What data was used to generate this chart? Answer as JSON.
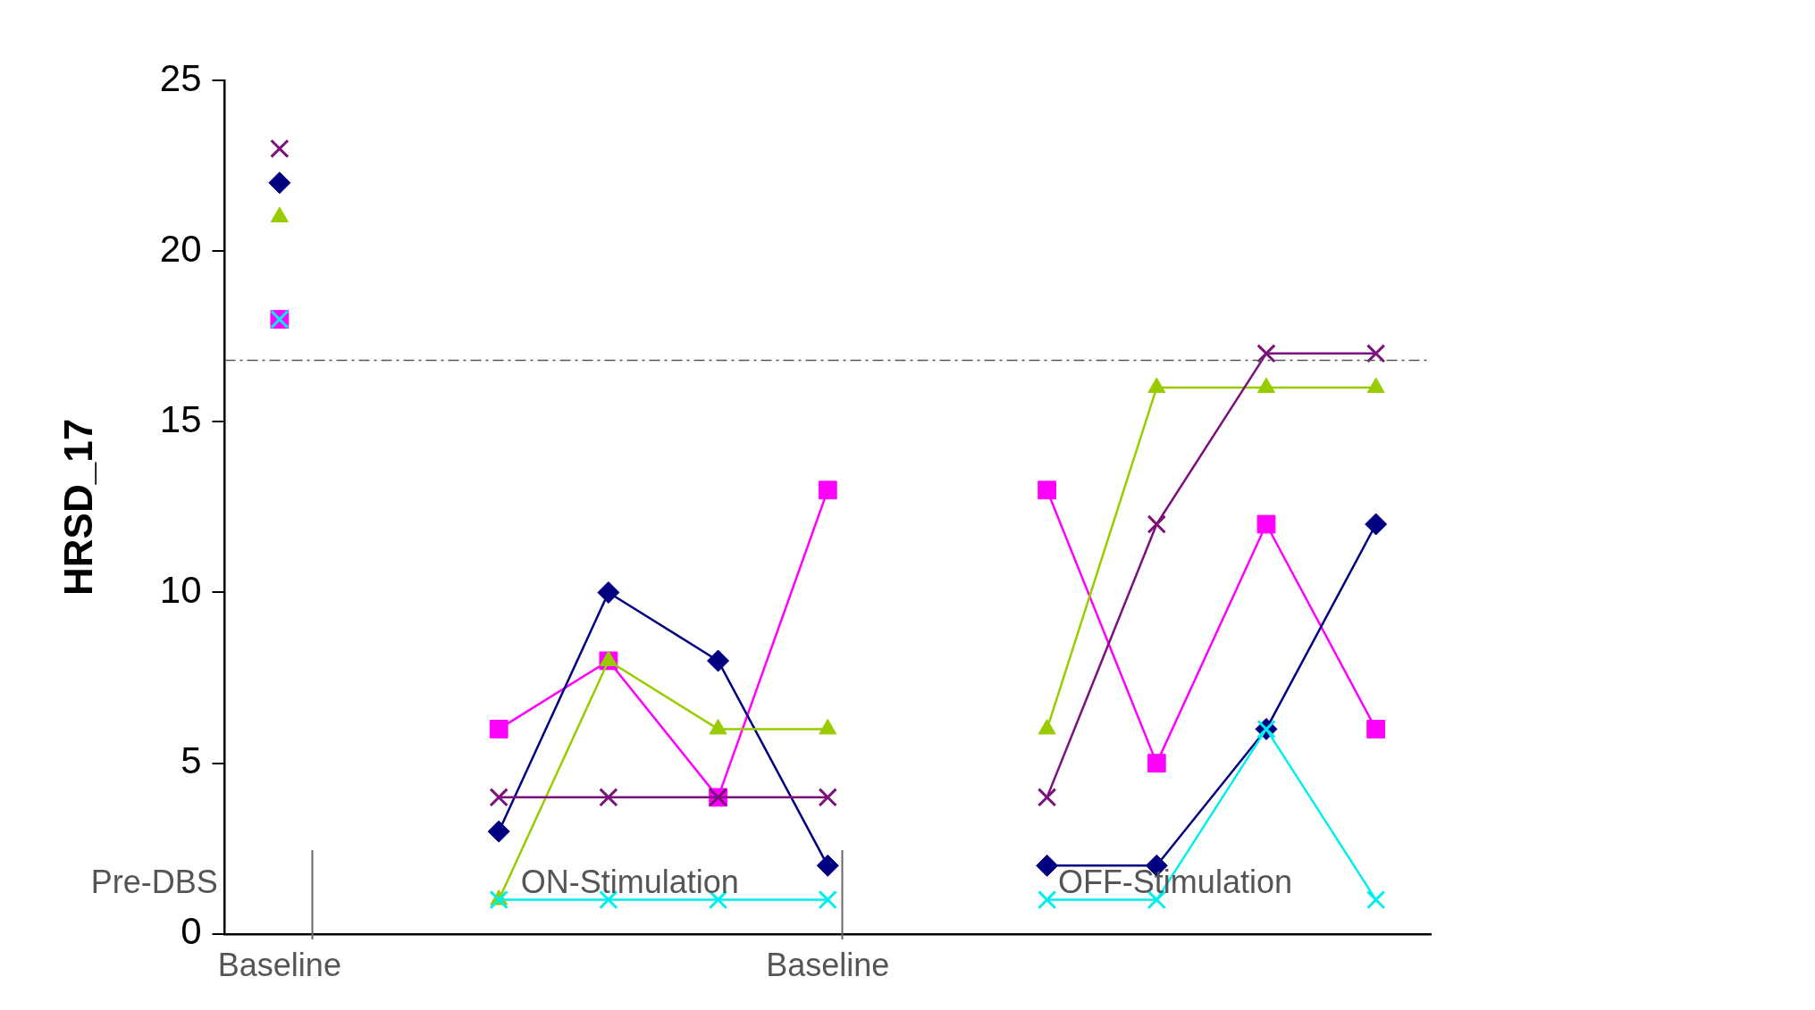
{
  "chart_data": {
    "type": "line",
    "ylabel": "HRSD_17",
    "categories": [
      "Baseline",
      null,
      null,
      null,
      null,
      "Baseline",
      null,
      null,
      null,
      null,
      null
    ],
    "ylim": [
      0,
      25
    ],
    "yticks": [
      0,
      5,
      10,
      15,
      20,
      25
    ],
    "grid": false,
    "legend": false,
    "ref_lines": [
      {
        "axis": "y",
        "value": 16.8,
        "color": "#555555",
        "line_style": "dashdot"
      }
    ],
    "annotations": [
      "Pre-DBS",
      "ON-Stimulation",
      "OFF-Stimulation"
    ],
    "series": [
      {
        "color": "#7b107b",
        "marker": "cross",
        "values": [
          23,
          null,
          4,
          4,
          4,
          4,
          null,
          4,
          12,
          17,
          17
        ]
      },
      {
        "color": "#000080",
        "marker": "diamond",
        "values": [
          22,
          null,
          3,
          10,
          8,
          2,
          null,
          2,
          2,
          6,
          12
        ]
      },
      {
        "color": "#99cc00",
        "marker": "triangle",
        "values": [
          21,
          null,
          1,
          8,
          6,
          6,
          null,
          6,
          16,
          16,
          16
        ]
      },
      {
        "color": "#ff00ff",
        "marker": "square",
        "values": [
          18,
          null,
          6,
          8,
          4,
          13,
          null,
          13,
          5,
          12,
          6
        ]
      },
      {
        "color": "#00eeee",
        "marker": "cross",
        "values": [
          18,
          null,
          1,
          1,
          1,
          1,
          null,
          1,
          1,
          6,
          1
        ]
      }
    ]
  }
}
